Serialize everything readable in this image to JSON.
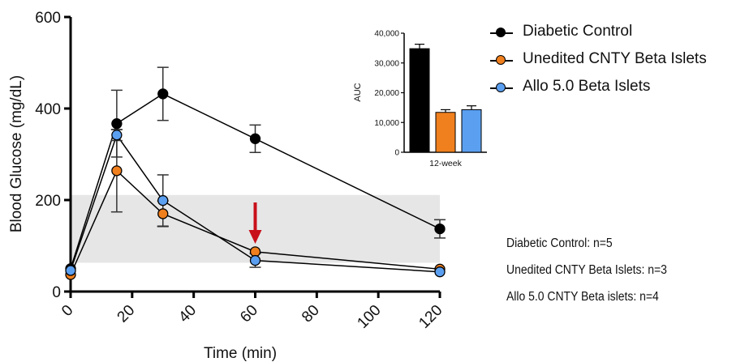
{
  "chart_data": [
    {
      "type": "line",
      "xlabel": "Time (min)",
      "ylabel": "Blood Glucose (mg/dL)",
      "xlim": [
        0,
        120
      ],
      "ylim": [
        0,
        600
      ],
      "xticks": [
        "0",
        "20",
        "40",
        "60",
        "80",
        "100",
        "120"
      ],
      "yticks": [
        "0",
        "200",
        "400",
        "600"
      ],
      "shaded_band": [
        63,
        211
      ],
      "annotation_arrow_x": 60,
      "series": [
        {
          "name": "Diabetic Control",
          "color": "#000000",
          "x": [
            0,
            15,
            30,
            60,
            120
          ],
          "y": [
            50,
            367,
            432,
            334,
            137
          ],
          "err": [
            0,
            73,
            58,
            30,
            20
          ]
        },
        {
          "name": "Unedited CNTY Beta Islets",
          "color": "#f07f1d",
          "x": [
            0,
            15,
            30,
            60,
            120
          ],
          "y": [
            37,
            264,
            170,
            87,
            49
          ],
          "err": [
            0,
            90,
            28,
            0,
            0
          ]
        },
        {
          "name": "Allo 5.0 Beta  Islets",
          "color": "#5b9ff0",
          "x": [
            0,
            15,
            30,
            60,
            120
          ],
          "y": [
            46,
            342,
            199,
            68,
            43
          ],
          "err": [
            0,
            12,
            56,
            15,
            0
          ]
        }
      ]
    },
    {
      "type": "bar",
      "ylabel": "AUC",
      "xlabel": "12-week",
      "ylim": [
        0,
        40000
      ],
      "yticks": [
        "0",
        "10,000",
        "20,000",
        "30,000",
        "40,000"
      ],
      "categories": [
        "Diabetic Control",
        "Unedited CNTY Beta Islets",
        "Allo 5.0 Beta  Islets"
      ],
      "values": [
        34800,
        13400,
        14300
      ],
      "err": [
        1500,
        900,
        1300
      ],
      "colors": [
        "#000000",
        "#f07f1d",
        "#5b9ff0"
      ]
    }
  ],
  "legend": [
    {
      "label": "Diabetic Control",
      "color": "#000000"
    },
    {
      "label": "Unedited CNTY Beta Islets",
      "color": "#f07f1d"
    },
    {
      "label": "Allo 5.0 Beta  Islets",
      "color": "#5b9ff0"
    }
  ],
  "notes": [
    "Diabetic Control: n=5",
    "Unedited CNTY Beta Islets: n=3",
    "Allo 5.0 CNTY Beta islets: n=4"
  ]
}
